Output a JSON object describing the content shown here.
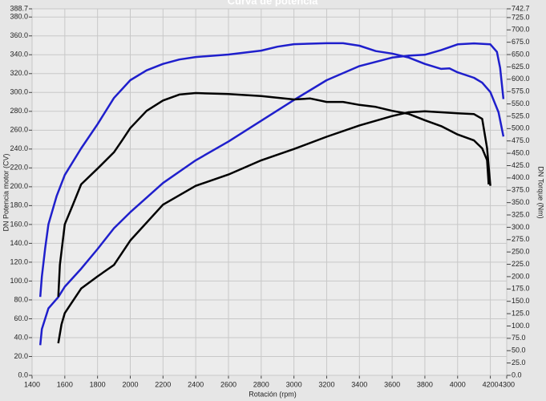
{
  "chart_data": {
    "type": "line",
    "title": "Curva de potencia",
    "x_label": "Rotación (rpm)",
    "y_label": "DN Potencia motor (CV)",
    "y2_label": "DN Torque (Nm)",
    "xlim": [
      1400,
      4300
    ],
    "xticks": [
      1400,
      1600,
      1800,
      2000,
      2200,
      2400,
      2600,
      2800,
      3000,
      3200,
      3400,
      3600,
      3800,
      4000,
      4200,
      4300
    ],
    "ylim": [
      0,
      388.7
    ],
    "yticks": [
      {
        "value": 0,
        "label": "0.0"
      },
      {
        "value": 20,
        "label": "20.0"
      },
      {
        "value": 40,
        "label": "40.0"
      },
      {
        "value": 60,
        "label": "60.0"
      },
      {
        "value": 80,
        "label": "80.0"
      },
      {
        "value": 100,
        "label": "100.0"
      },
      {
        "value": 120,
        "label": "120.0"
      },
      {
        "value": 140,
        "label": "140.0"
      },
      {
        "value": 160,
        "label": "160.0"
      },
      {
        "value": 180,
        "label": "180.0"
      },
      {
        "value": 200,
        "label": "200.0"
      },
      {
        "value": 220,
        "label": "220.0"
      },
      {
        "value": 240,
        "label": "240.0"
      },
      {
        "value": 260,
        "label": "260.0"
      },
      {
        "value": 280,
        "label": "280.0"
      },
      {
        "value": 300,
        "label": "300.0"
      },
      {
        "value": 320,
        "label": "320.0"
      },
      {
        "value": 340,
        "label": "340.0"
      },
      {
        "value": 360,
        "label": "360.0"
      },
      {
        "value": 380,
        "label": "380.0"
      },
      388.7
    ],
    "y2lim": [
      0,
      742.7
    ],
    "y2ticks": [
      {
        "value": 0,
        "label": "0.0"
      },
      {
        "value": 25,
        "label": "25.0"
      },
      {
        "value": 50,
        "label": "50.0"
      },
      {
        "value": 75,
        "label": "75.0"
      },
      {
        "value": 100,
        "label": "100.0"
      },
      {
        "value": 125,
        "label": "125.0"
      },
      {
        "value": 150,
        "label": "150.0"
      },
      {
        "value": 175,
        "label": "175.0"
      },
      {
        "value": 200,
        "label": "200.0"
      },
      {
        "value": 225,
        "label": "225.0"
      },
      {
        "value": 250,
        "label": "250.0"
      },
      {
        "value": 275,
        "label": "275.0"
      },
      {
        "value": 300,
        "label": "300.0"
      },
      {
        "value": 325,
        "label": "325.0"
      },
      {
        "value": 350,
        "label": "350.0"
      },
      {
        "value": 375,
        "label": "375.0"
      },
      {
        "value": 400,
        "label": "400.0"
      },
      {
        "value": 425,
        "label": "425.0"
      },
      {
        "value": 450,
        "label": "450.0"
      },
      {
        "value": 475,
        "label": "475.0"
      },
      {
        "value": 500,
        "label": "500.0"
      },
      {
        "value": 525,
        "label": "525.0"
      },
      {
        "value": 550,
        "label": "550.0"
      },
      {
        "value": 575,
        "label": "575.0"
      },
      {
        "value": 600,
        "label": "600.0"
      },
      {
        "value": 625,
        "label": "625.0"
      },
      {
        "value": 650,
        "label": "650.0"
      },
      {
        "value": 675,
        "label": "675.0"
      },
      {
        "value": 700,
        "label": "700.0"
      },
      {
        "value": 725,
        "label": "725.0"
      },
      742.7
    ],
    "grid": true,
    "series": [
      {
        "color": "#1f1fcc",
        "axis": "y2",
        "x": [
          1450,
          1460,
          1480,
          1500,
          1550,
          1600,
          1700,
          1800,
          1900,
          2000,
          2100,
          2200,
          2300,
          2400,
          2600,
          2800,
          2900,
          3000,
          3200,
          3300,
          3400,
          3500,
          3600,
          3700,
          3800,
          3900,
          3950,
          4000,
          4100,
          4150,
          4200,
          4250,
          4280
        ],
        "values": [
          159,
          200,
          257,
          306,
          363,
          406,
          460,
          509,
          562,
          598,
          618,
          631,
          640,
          645,
          650,
          658,
          666,
          671,
          673,
          673,
          668,
          657,
          652,
          644,
          631,
          621,
          622,
          614,
          603,
          593,
          574,
          533,
          484
        ]
      },
      {
        "color": "#1f1fcc",
        "x": [
          1450,
          1460,
          1500,
          1560,
          1600,
          1700,
          1800,
          1900,
          2000,
          2200,
          2400,
          2600,
          2800,
          3000,
          3200,
          3400,
          3600,
          3700,
          3800,
          3900,
          4000,
          4100,
          4200,
          4240,
          4260,
          4280
        ],
        "values": [
          32,
          49,
          71,
          83,
          94,
          113,
          134,
          156,
          173,
          204,
          228,
          248,
          270,
          292,
          313,
          328,
          337,
          339,
          340,
          345,
          351,
          352,
          351,
          343,
          326,
          293
        ]
      },
      {
        "color": "#000000",
        "axis": "y2",
        "x": [
          1560,
          1570,
          1600,
          1650,
          1700,
          1800,
          1900,
          1950,
          2000,
          2100,
          2200,
          2300,
          2400,
          2600,
          2800,
          3000,
          3100,
          3200,
          3300,
          3400,
          3500,
          3600,
          3700,
          3800,
          3900,
          4000,
          4100,
          4150,
          4180,
          4190
        ],
        "values": [
          159,
          224,
          306,
          346,
          387,
          419,
          452,
          476,
          501,
          536,
          557,
          569,
          572,
          570,
          566,
          559,
          561,
          554,
          554,
          548,
          544,
          536,
          530,
          517,
          505,
          488,
          476,
          460,
          436,
          387
        ]
      },
      {
        "color": "#000000",
        "x": [
          1560,
          1580,
          1600,
          1700,
          1800,
          1900,
          2000,
          2200,
          2400,
          2600,
          2800,
          3000,
          3200,
          3400,
          3500,
          3600,
          3700,
          3800,
          3900,
          4000,
          4100,
          4150,
          4180,
          4200
        ],
        "values": [
          34,
          54,
          66,
          92,
          105,
          117,
          143,
          181,
          201,
          213,
          228,
          240,
          253,
          265,
          270,
          275,
          279,
          280,
          279,
          278,
          277,
          272,
          241,
          201
        ]
      }
    ]
  }
}
